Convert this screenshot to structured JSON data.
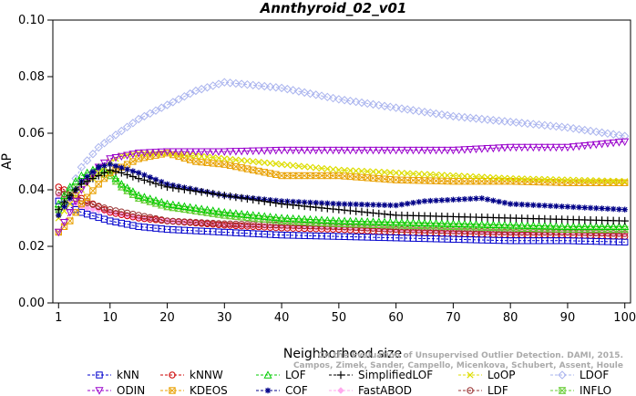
{
  "chart_data": {
    "type": "line",
    "title": "Annthyroid_02_v01",
    "xlabel": "Neighborhood size",
    "ylabel": "AP",
    "xlim": [
      0,
      101
    ],
    "ylim": [
      0.0,
      0.1
    ],
    "xticks": [
      1,
      10,
      20,
      30,
      40,
      50,
      60,
      70,
      80,
      90,
      100
    ],
    "yticks": [
      0.0,
      0.02,
      0.04,
      0.06,
      0.08,
      0.1
    ],
    "ytick_labels": [
      "0.00",
      "0.02",
      "0.04",
      "0.06",
      "0.08",
      "0.10"
    ],
    "legend_position": "bottom",
    "watermark": [
      "On the Evaluation of Unsupervised Outlier Detection. DAMI, 2015.",
      "Campos, Zimek, Sander, Campello, Micenkova, Schubert, Assent, Houle"
    ],
    "series": [
      {
        "name": "kNN",
        "color": "#0000cc",
        "marker": "square",
        "points": [
          [
            1,
            0.036
          ],
          [
            3,
            0.034
          ],
          [
            5,
            0.032
          ],
          [
            10,
            0.029
          ],
          [
            15,
            0.027
          ],
          [
            20,
            0.026
          ],
          [
            30,
            0.025
          ],
          [
            40,
            0.024
          ],
          [
            50,
            0.0235
          ],
          [
            60,
            0.023
          ],
          [
            70,
            0.0225
          ],
          [
            80,
            0.022
          ],
          [
            90,
            0.022
          ],
          [
            100,
            0.0215
          ]
        ]
      },
      {
        "name": "kNNW",
        "color": "#cc0000",
        "marker": "circle",
        "points": [
          [
            1,
            0.041
          ],
          [
            3,
            0.039
          ],
          [
            5,
            0.037
          ],
          [
            8,
            0.034
          ],
          [
            10,
            0.032
          ],
          [
            15,
            0.03
          ],
          [
            20,
            0.029
          ],
          [
            30,
            0.0275
          ],
          [
            40,
            0.0265
          ],
          [
            50,
            0.026
          ],
          [
            60,
            0.025
          ],
          [
            70,
            0.0245
          ],
          [
            80,
            0.024
          ],
          [
            90,
            0.024
          ],
          [
            100,
            0.0235
          ]
        ]
      },
      {
        "name": "LOF",
        "color": "#00cc00",
        "marker": "triangle-up",
        "points": [
          [
            1,
            0.035
          ],
          [
            3,
            0.041
          ],
          [
            5,
            0.045
          ],
          [
            8,
            0.048
          ],
          [
            10,
            0.046
          ],
          [
            12,
            0.042
          ],
          [
            15,
            0.038
          ],
          [
            20,
            0.035
          ],
          [
            30,
            0.032
          ],
          [
            40,
            0.03
          ],
          [
            50,
            0.029
          ],
          [
            60,
            0.0285
          ],
          [
            70,
            0.028
          ],
          [
            80,
            0.0275
          ],
          [
            90,
            0.027
          ],
          [
            100,
            0.027
          ]
        ]
      },
      {
        "name": "SimplifiedLOF",
        "color": "#000000",
        "marker": "plus",
        "points": [
          [
            1,
            0.033
          ],
          [
            3,
            0.038
          ],
          [
            5,
            0.042
          ],
          [
            8,
            0.045
          ],
          [
            10,
            0.047
          ],
          [
            12,
            0.046
          ],
          [
            15,
            0.044
          ],
          [
            20,
            0.041
          ],
          [
            30,
            0.038
          ],
          [
            40,
            0.035
          ],
          [
            50,
            0.033
          ],
          [
            60,
            0.031
          ],
          [
            70,
            0.0305
          ],
          [
            80,
            0.03
          ],
          [
            90,
            0.0295
          ],
          [
            100,
            0.029
          ]
        ]
      },
      {
        "name": "LoOP",
        "color": "#dddd00",
        "marker": "x",
        "points": [
          [
            1,
            0.03
          ],
          [
            3,
            0.035
          ],
          [
            5,
            0.04
          ],
          [
            8,
            0.046
          ],
          [
            10,
            0.05
          ],
          [
            12,
            0.052
          ],
          [
            15,
            0.053
          ],
          [
            20,
            0.053
          ],
          [
            30,
            0.051
          ],
          [
            40,
            0.049
          ],
          [
            50,
            0.047
          ],
          [
            60,
            0.046
          ],
          [
            70,
            0.045
          ],
          [
            80,
            0.044
          ],
          [
            90,
            0.0435
          ],
          [
            100,
            0.043
          ]
        ]
      },
      {
        "name": "LDOF",
        "color": "#aab4ee",
        "marker": "diamond",
        "points": [
          [
            1,
            0.033
          ],
          [
            3,
            0.04
          ],
          [
            5,
            0.048
          ],
          [
            8,
            0.055
          ],
          [
            10,
            0.058
          ],
          [
            15,
            0.065
          ],
          [
            20,
            0.07
          ],
          [
            25,
            0.075
          ],
          [
            30,
            0.078
          ],
          [
            35,
            0.077
          ],
          [
            40,
            0.076
          ],
          [
            45,
            0.074
          ],
          [
            50,
            0.072
          ],
          [
            60,
            0.069
          ],
          [
            70,
            0.066
          ],
          [
            80,
            0.064
          ],
          [
            90,
            0.062
          ],
          [
            100,
            0.059
          ]
        ]
      },
      {
        "name": "ODIN",
        "color": "#9900cc",
        "marker": "triangle-down",
        "points": [
          [
            1,
            0.025
          ],
          [
            3,
            0.032
          ],
          [
            5,
            0.04
          ],
          [
            8,
            0.048
          ],
          [
            10,
            0.051
          ],
          [
            15,
            0.053
          ],
          [
            20,
            0.0535
          ],
          [
            30,
            0.0535
          ],
          [
            40,
            0.054
          ],
          [
            50,
            0.054
          ],
          [
            60,
            0.054
          ],
          [
            70,
            0.054
          ],
          [
            80,
            0.055
          ],
          [
            90,
            0.055
          ],
          [
            100,
            0.057
          ]
        ]
      },
      {
        "name": "KDEOS",
        "color": "#e8a000",
        "marker": "square-x",
        "points": [
          [
            1,
            0.025
          ],
          [
            3,
            0.029
          ],
          [
            5,
            0.035
          ],
          [
            8,
            0.042
          ],
          [
            10,
            0.046
          ],
          [
            15,
            0.051
          ],
          [
            20,
            0.053
          ],
          [
            25,
            0.05
          ],
          [
            30,
            0.049
          ],
          [
            40,
            0.045
          ],
          [
            50,
            0.045
          ],
          [
            60,
            0.0435
          ],
          [
            70,
            0.043
          ],
          [
            80,
            0.043
          ],
          [
            90,
            0.0425
          ],
          [
            100,
            0.0425
          ]
        ]
      },
      {
        "name": "COF",
        "color": "#000088",
        "marker": "asterisk",
        "points": [
          [
            1,
            0.031
          ],
          [
            3,
            0.037
          ],
          [
            5,
            0.043
          ],
          [
            8,
            0.048
          ],
          [
            10,
            0.049
          ],
          [
            15,
            0.046
          ],
          [
            20,
            0.042
          ],
          [
            30,
            0.038
          ],
          [
            40,
            0.036
          ],
          [
            50,
            0.035
          ],
          [
            60,
            0.0345
          ],
          [
            65,
            0.036
          ],
          [
            70,
            0.0365
          ],
          [
            75,
            0.037
          ],
          [
            80,
            0.035
          ],
          [
            90,
            0.034
          ],
          [
            100,
            0.033
          ]
        ]
      },
      {
        "name": "FastABOD",
        "color": "#ffaaee",
        "marker": "diamond-filled",
        "points": [
          [
            1,
            0.038
          ],
          [
            3,
            0.036
          ],
          [
            5,
            0.034
          ],
          [
            10,
            0.032
          ],
          [
            15,
            0.03
          ],
          [
            20,
            0.029
          ],
          [
            30,
            0.0275
          ],
          [
            40,
            0.027
          ],
          [
            50,
            0.0265
          ],
          [
            60,
            0.026
          ],
          [
            70,
            0.0255
          ],
          [
            80,
            0.025
          ],
          [
            90,
            0.025
          ],
          [
            100,
            0.0245
          ]
        ]
      },
      {
        "name": "LDF",
        "color": "#993333",
        "marker": "circle-dot",
        "points": [
          [
            1,
            0.039
          ],
          [
            3,
            0.038
          ],
          [
            5,
            0.036
          ],
          [
            10,
            0.033
          ],
          [
            15,
            0.031
          ],
          [
            20,
            0.029
          ],
          [
            30,
            0.028
          ],
          [
            40,
            0.0275
          ],
          [
            50,
            0.027
          ],
          [
            60,
            0.026
          ],
          [
            70,
            0.0255
          ],
          [
            80,
            0.025
          ],
          [
            90,
            0.025
          ],
          [
            100,
            0.0245
          ]
        ]
      },
      {
        "name": "INFLO",
        "color": "#66cc33",
        "marker": "hourglass",
        "points": [
          [
            1,
            0.033
          ],
          [
            3,
            0.039
          ],
          [
            5,
            0.043
          ],
          [
            8,
            0.046
          ],
          [
            10,
            0.045
          ],
          [
            12,
            0.041
          ],
          [
            15,
            0.037
          ],
          [
            20,
            0.034
          ],
          [
            30,
            0.031
          ],
          [
            40,
            0.029
          ],
          [
            50,
            0.028
          ],
          [
            60,
            0.0275
          ],
          [
            70,
            0.027
          ],
          [
            80,
            0.0265
          ],
          [
            90,
            0.026
          ],
          [
            100,
            0.026
          ]
        ]
      }
    ]
  }
}
